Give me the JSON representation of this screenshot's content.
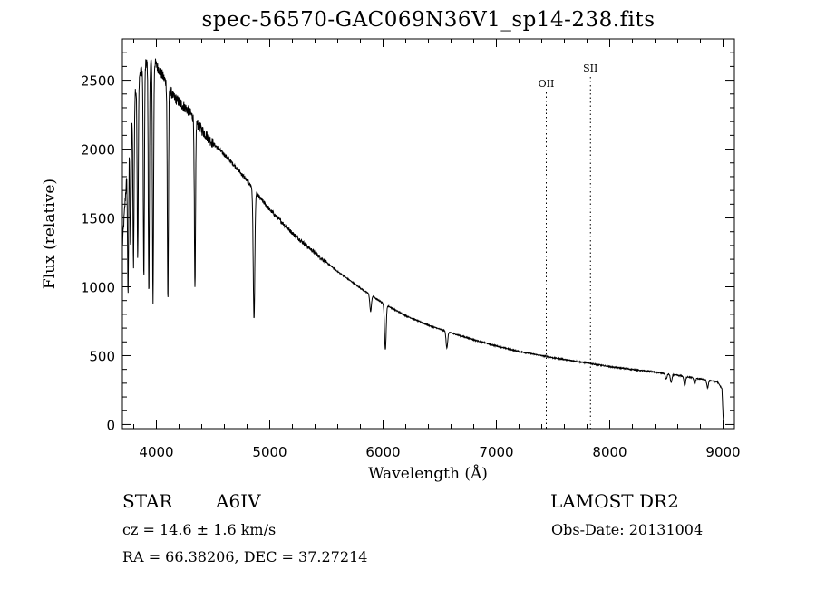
{
  "chart_data": {
    "type": "line",
    "title": "spec-56570-GAC069N36V1_sp14-238.fits",
    "xlabel": "Wavelength (Å)",
    "ylabel": "Flux (relative)",
    "xlim": [
      3700,
      9100
    ],
    "ylim": [
      -30,
      2800
    ],
    "xticks": [
      4000,
      5000,
      6000,
      7000,
      8000,
      9000
    ],
    "yticks": [
      0,
      500,
      1000,
      1500,
      2000,
      2500
    ],
    "grid": false,
    "legend": "none",
    "line_color": "#000000",
    "marker_lines": [
      {
        "label": "OII",
        "x": 7440
      },
      {
        "label": "SII",
        "x": 7830
      }
    ],
    "continuum": [
      [
        3700,
        1300
      ],
      [
        3760,
        2100
      ],
      [
        3830,
        2500
      ],
      [
        3900,
        2620
      ],
      [
        3970,
        2650
      ],
      [
        4050,
        2540
      ],
      [
        4150,
        2380
      ],
      [
        4280,
        2280
      ],
      [
        4400,
        2140
      ],
      [
        4500,
        2040
      ],
      [
        4600,
        1960
      ],
      [
        4700,
        1870
      ],
      [
        4800,
        1770
      ],
      [
        4900,
        1660
      ],
      [
        5000,
        1560
      ],
      [
        5200,
        1390
      ],
      [
        5400,
        1245
      ],
      [
        5600,
        1110
      ],
      [
        5800,
        990
      ],
      [
        6000,
        880
      ],
      [
        6200,
        790
      ],
      [
        6400,
        720
      ],
      [
        6600,
        665
      ],
      [
        6800,
        615
      ],
      [
        7000,
        570
      ],
      [
        7200,
        530
      ],
      [
        7500,
        485
      ],
      [
        8000,
        420
      ],
      [
        8400,
        380
      ],
      [
        8700,
        345
      ],
      [
        8950,
        310
      ],
      [
        8990,
        260
      ],
      [
        9000,
        60
      ],
      [
        9005,
        10
      ]
    ],
    "absorption_lines": [
      {
        "x": 3750,
        "depth": 1000
      },
      {
        "x": 3772,
        "depth": 900
      },
      {
        "x": 3798,
        "depth": 1150
      },
      {
        "x": 3835,
        "depth": 1300
      },
      {
        "x": 3889,
        "depth": 1550
      },
      {
        "x": 3933,
        "depth": 1700
      },
      {
        "x": 3970,
        "depth": 1750
      },
      {
        "x": 4101,
        "depth": 1550
      },
      {
        "x": 4340,
        "depth": 1250
      },
      {
        "x": 4861,
        "depth": 940
      },
      {
        "x": 5890,
        "depth": 120
      },
      {
        "x": 6020,
        "depth": 330
      },
      {
        "x": 6563,
        "depth": 120
      },
      {
        "x": 8498,
        "depth": 40
      },
      {
        "x": 8542,
        "depth": 60
      },
      {
        "x": 8662,
        "depth": 70
      },
      {
        "x": 8750,
        "depth": 45
      },
      {
        "x": 8863,
        "depth": 55
      }
    ]
  },
  "footer": {
    "object_class": "STAR",
    "subclass": "A6IV",
    "survey": "LAMOST DR2",
    "redshift": "cz =  14.6 ± 1.6 km/s",
    "obs_date": "Obs-Date: 20131004",
    "coords": "RA =  66.38206, DEC =  37.27214"
  }
}
